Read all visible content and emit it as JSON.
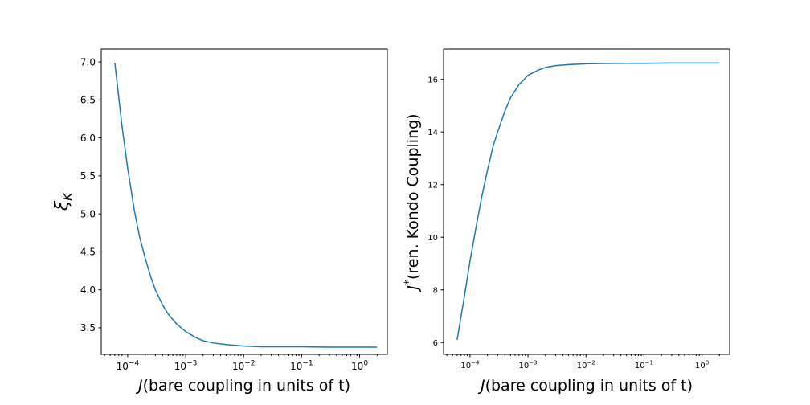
{
  "chart_data": [
    {
      "type": "line",
      "xscale": "log",
      "xlim": [
        3.5e-05,
        3.0
      ],
      "ylim": [
        3.15,
        7.17
      ],
      "xlabel_symbol": "J",
      "xlabel_text": "(bare coupling in units of t)",
      "ylabel": "ξ",
      "ylabel_sub": "K",
      "xticks": [
        {
          "value": 0.0001,
          "base": "10",
          "exp": "−4"
        },
        {
          "value": 0.001,
          "base": "10",
          "exp": "−3"
        },
        {
          "value": 0.01,
          "base": "10",
          "exp": "−2"
        },
        {
          "value": 0.1,
          "base": "10",
          "exp": "−1"
        },
        {
          "value": 1,
          "base": "10",
          "exp": "0"
        }
      ],
      "yticks": [
        {
          "value": 3.5,
          "label": "3.5"
        },
        {
          "value": 4.0,
          "label": "4.0"
        },
        {
          "value": 4.5,
          "label": "4.5"
        },
        {
          "value": 5.0,
          "label": "5.0"
        },
        {
          "value": 5.5,
          "label": "5.5"
        },
        {
          "value": 6.0,
          "label": "6.0"
        },
        {
          "value": 6.5,
          "label": "6.5"
        },
        {
          "value": 7.0,
          "label": "7.0"
        }
      ],
      "grid": false,
      "series": [
        {
          "color": "#1f77b4",
          "x": [
            6e-05,
            8e-05,
            0.0001,
            0.00013,
            0.00016,
            0.0002,
            0.00025,
            0.0003,
            0.0004,
            0.0005,
            0.0007,
            0.001,
            0.0015,
            0.002,
            0.003,
            0.005,
            0.01,
            0.02,
            0.05,
            0.1,
            0.3,
            1,
            2
          ],
          "y": [
            6.99,
            6.15,
            5.6,
            5.05,
            4.7,
            4.42,
            4.17,
            4.0,
            3.8,
            3.68,
            3.55,
            3.45,
            3.37,
            3.33,
            3.3,
            3.28,
            3.26,
            3.25,
            3.25,
            3.25,
            3.245,
            3.245,
            3.245
          ]
        }
      ]
    },
    {
      "type": "line",
      "xscale": "log",
      "xlim": [
        3.5e-05,
        3.0
      ],
      "ylim": [
        5.55,
        17.15
      ],
      "xlabel_symbol": "J",
      "xlabel_text": "(bare coupling in units of t)",
      "ylabel_symbol": "J",
      "ylabel_sup": "*",
      "ylabel_text": "(ren. Kondo Coupling)",
      "xticks": [
        {
          "value": 0.0001,
          "base": "10",
          "exp": "−4"
        },
        {
          "value": 0.001,
          "base": "10",
          "exp": "−3"
        },
        {
          "value": 0.01,
          "base": "10",
          "exp": "−2"
        },
        {
          "value": 0.1,
          "base": "10",
          "exp": "−1"
        },
        {
          "value": 1,
          "base": "10",
          "exp": "0"
        }
      ],
      "yticks": [
        {
          "value": 6,
          "label": "6"
        },
        {
          "value": 8,
          "label": "8"
        },
        {
          "value": 10,
          "label": "10"
        },
        {
          "value": 12,
          "label": "12"
        },
        {
          "value": 14,
          "label": "14"
        },
        {
          "value": 16,
          "label": "16"
        }
      ],
      "grid": false,
      "series": [
        {
          "color": "#1f77b4",
          "x": [
            6e-05,
            8e-05,
            0.0001,
            0.00013,
            0.00016,
            0.0002,
            0.00025,
            0.0003,
            0.0004,
            0.0005,
            0.0007,
            0.001,
            0.0015,
            0.002,
            0.003,
            0.005,
            0.01,
            0.02,
            0.05,
            0.1,
            0.3,
            1,
            2
          ],
          "y": [
            6.1,
            7.75,
            9.1,
            10.5,
            11.55,
            12.55,
            13.45,
            14.0,
            14.8,
            15.3,
            15.8,
            16.15,
            16.35,
            16.45,
            16.52,
            16.56,
            16.59,
            16.6,
            16.61,
            16.61,
            16.62,
            16.62,
            16.62
          ]
        }
      ]
    }
  ]
}
